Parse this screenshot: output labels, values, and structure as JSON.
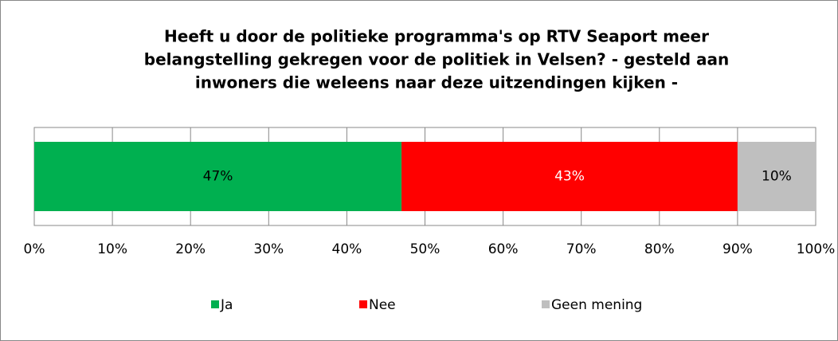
{
  "chart_data": {
    "type": "stacked_bar_horizontal",
    "title": [
      "Heeft u door de politieke programma's op RTV Seaport meer",
      "belangstelling gekregen voor de politiek in Velsen? - gesteld aan",
      "inwoners die weleens naar deze uitzendingen kijken -"
    ],
    "series": [
      {
        "name": "Ja",
        "color": "#00b050",
        "values": [
          47
        ],
        "value_labels": [
          "47%"
        ]
      },
      {
        "name": "Nee",
        "color": "#ff0000",
        "values": [
          43
        ],
        "value_labels": [
          "43%"
        ]
      },
      {
        "name": "Geen mening",
        "color": "#bfbfbf",
        "values": [
          10
        ],
        "value_labels": [
          "10%"
        ]
      }
    ],
    "xlim": [
      0,
      100
    ],
    "xticks": [
      {
        "value": 0,
        "label": "0%"
      },
      {
        "value": 10,
        "label": "10%"
      },
      {
        "value": 20,
        "label": "20%"
      },
      {
        "value": 30,
        "label": "30%"
      },
      {
        "value": 40,
        "label": "40%"
      },
      {
        "value": 50,
        "label": "50%"
      },
      {
        "value": 60,
        "label": "60%"
      },
      {
        "value": 70,
        "label": "70%"
      },
      {
        "value": 80,
        "label": "80%"
      },
      {
        "value": 90,
        "label": "90%"
      },
      {
        "value": 100,
        "label": "100%"
      }
    ],
    "grid": true,
    "legend": "bottom"
  }
}
